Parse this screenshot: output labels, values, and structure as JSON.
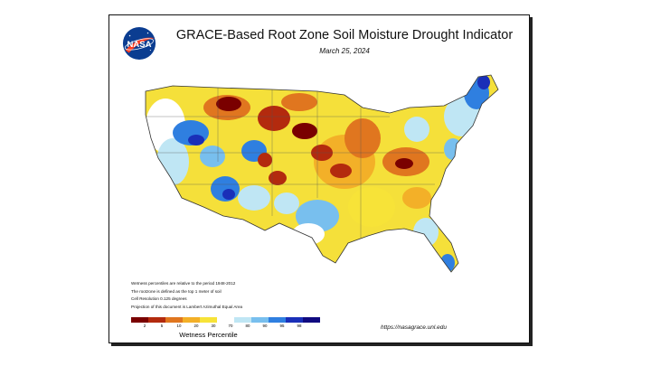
{
  "title": "GRACE-Based Root Zone Soil  Moisture Drought Indicator",
  "date": "March 25, 2024",
  "logo_text": "NASA",
  "notes": [
    "Wetness percentiles are relative to the period 1948-2012",
    "The rootzone is defined as the top 1 meter of soil",
    "Cell Resolution 0.125 degrees",
    "Projection of this document is Lambert Azimuthal Equal Area"
  ],
  "legend": {
    "title": "Wetness Percentile",
    "ticks": [
      "2",
      "5",
      "10",
      "20",
      "30",
      "70",
      "80",
      "90",
      "95",
      "98"
    ],
    "colors": [
      "#7a0000",
      "#b32a0e",
      "#e0761f",
      "#f3b028",
      "#f7e338",
      "#ffffff",
      "#bfe6f4",
      "#78bfee",
      "#2f7fe0",
      "#1a2fb8",
      "#100a80"
    ]
  },
  "url": "https://nasagrace.unl.edu"
}
